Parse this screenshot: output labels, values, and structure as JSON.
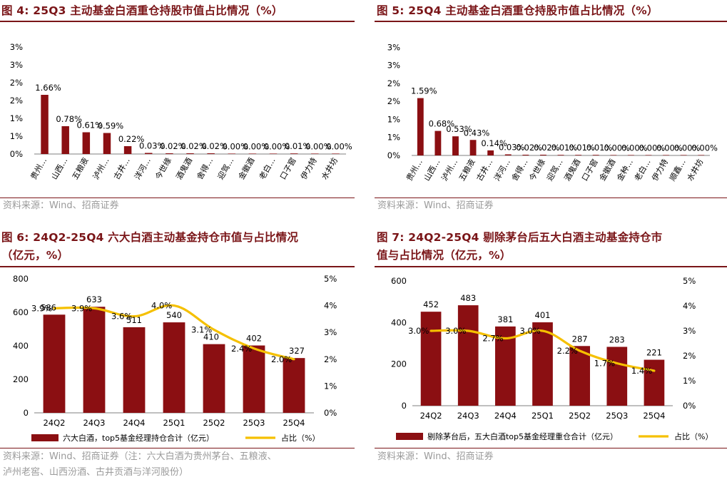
{
  "colors": {
    "bar": "#8b0f12",
    "line": "#f5c000",
    "title": "#7a1518",
    "source": "#9a9a9a",
    "axis": "#7f7f7f"
  },
  "fig4": {
    "title": "图 4:  25Q3 主动基金白酒重仓持股市值占比情况（%）",
    "source": "资料来源：Wind、招商证券"
  },
  "fig5": {
    "title": "图 5:  25Q4 主动基金白酒重仓持股市值占比情况（%）",
    "source": "资料来源：Wind、招商证券"
  },
  "fig6": {
    "title_line1": "图 6:  24Q2-25Q4 六大白酒主动基金持仓市值与占比情况",
    "title_line2": "（亿元，%）",
    "source_line1": "资料来源：Wind、招商证券（注：六大白酒为贵州茅台、五粮液、",
    "source_line2": "泸州老窖、山西汾酒、古井贡酒与洋河股份）"
  },
  "fig7": {
    "title_line1": "图 7:  24Q2-25Q4 剔除茅台后五大白酒主动基金持仓市",
    "title_line2": "值与占比情况（亿元，%）",
    "source": "资料来源：Wind、招商证券"
  },
  "chart_data": [
    {
      "id": "fig4",
      "type": "bar",
      "title": "25Q3 主动基金白酒重仓持股市值占比情况（%）",
      "categories": [
        "贵州…",
        "山西…",
        "五粮液",
        "泸州…",
        "古井…",
        "洋河…",
        "今世缘",
        "酒鬼酒",
        "舍得…",
        "迎驾…",
        "金徽酒",
        "老白…",
        "口子窖",
        "伊力特",
        "水井坊"
      ],
      "show_category": [
        true,
        true,
        true,
        true,
        true,
        true,
        true,
        true,
        true,
        true,
        true,
        true,
        true,
        true,
        true
      ],
      "values": [
        1.66,
        0.78,
        0.61,
        0.59,
        0.22,
        0.03,
        0.02,
        0.02,
        0.02,
        0.0,
        0.0,
        0.0,
        0.01,
        0.0,
        0.0
      ],
      "labels": [
        "1.66%",
        "0.78%",
        "0.61%",
        "0.59%",
        "0.22%",
        "0.03%",
        "0.02%",
        "0.02%",
        "0.02%",
        "0.00%",
        "0.00%",
        "0.00%",
        "0.01%",
        "0.00%",
        "0.00%"
      ],
      "yticks": [
        "3%",
        "3%",
        "2%",
        "2%",
        "1%",
        "1%",
        "0%"
      ],
      "ylim": [
        0,
        3.5
      ]
    },
    {
      "id": "fig5",
      "type": "bar",
      "title": "25Q4 主动基金白酒重仓持股市值占比情况（%）",
      "categories": [
        "贵州…",
        "山西…",
        "泸州…",
        "五粮液",
        "古井…",
        "洋河…",
        "舍得…",
        "今世缘",
        "迎驾…",
        "酒鬼酒",
        "口子窖",
        "金徽酒",
        "金种…",
        "老白…",
        "伊力特",
        "顺鑫…",
        "水井坊"
      ],
      "show_category": [
        true,
        true,
        true,
        true,
        true,
        true,
        true,
        true,
        true,
        true,
        true,
        true,
        true,
        true,
        true,
        true,
        true
      ],
      "values": [
        1.59,
        0.68,
        0.53,
        0.43,
        0.14,
        0.03,
        0.02,
        0.02,
        0.01,
        0.01,
        0.01,
        0.0,
        0.0,
        0.0,
        0.0,
        0.0,
        0.0
      ],
      "labels": [
        "1.59%",
        "0.68%",
        "0.53%",
        "0.43%",
        "0.14%",
        "0.03%",
        "0.02%",
        "0.02%",
        "0.01%",
        "0.01%",
        "0.01%",
        "0.00%",
        "0.00%",
        "0.00%",
        "0.00%",
        "0.00%",
        "0.00%"
      ],
      "yticks": [
        "3%",
        "3%",
        "2%",
        "2%",
        "1%",
        "1%",
        "0%"
      ],
      "ylim": [
        0,
        3.5
      ]
    },
    {
      "id": "fig6",
      "type": "bar+line",
      "title": "24Q2-25Q4 六大白酒主动基金持仓市值与占比情况（亿元，%）",
      "categories": [
        "24Q2",
        "24Q3",
        "24Q4",
        "25Q1",
        "25Q2",
        "25Q3",
        "25Q4"
      ],
      "bar_values": [
        586,
        633,
        511,
        540,
        410,
        402,
        327
      ],
      "bar_labels": [
        "586",
        "633",
        "511",
        "540",
        "410",
        "402",
        "327"
      ],
      "line_values": [
        3.9,
        3.9,
        3.6,
        4.0,
        3.1,
        2.4,
        2.0
      ],
      "line_labels": [
        "3.9%",
        "3.9%",
        "3.6%",
        "4.0%",
        "3.1%",
        "2.4%",
        "2.0%"
      ],
      "ylim_left": [
        0,
        800
      ],
      "yticks_left": [
        "0",
        "200",
        "400",
        "600",
        "800"
      ],
      "ylim_right": [
        0,
        5
      ],
      "yticks_right": [
        "0%",
        "1%",
        "2%",
        "3%",
        "4%",
        "5%"
      ],
      "legend": [
        "六大白酒，top5基金经理持仓合计（亿元）",
        "占比（%）"
      ]
    },
    {
      "id": "fig7",
      "type": "bar+line",
      "title": "24Q2-25Q4 剔除茅台后五大白酒主动基金持仓市值与占比情况（亿元，%）",
      "categories": [
        "24Q2",
        "24Q3",
        "24Q4",
        "25Q1",
        "25Q2",
        "25Q3",
        "25Q4"
      ],
      "bar_values": [
        452,
        483,
        381,
        401,
        287,
        283,
        221
      ],
      "bar_labels": [
        "452",
        "483",
        "381",
        "401",
        "287",
        "283",
        "221"
      ],
      "line_values": [
        3.0,
        3.0,
        2.7,
        3.0,
        2.2,
        1.7,
        1.4
      ],
      "line_labels": [
        "3.0%",
        "3.0%",
        "2.7%",
        "3.0%",
        "2.2%",
        "1.7%",
        "1.4%"
      ],
      "ylim_left": [
        0,
        600
      ],
      "yticks_left": [
        "0",
        "200",
        "400",
        "600"
      ],
      "ylim_right": [
        0,
        5
      ],
      "yticks_right": [
        "0%",
        "1%",
        "2%",
        "3%",
        "4%",
        "5%"
      ],
      "legend": [
        "剔除茅台后，五大白酒top5基金经理重仓合计（亿元）",
        "占比（%）"
      ]
    }
  ]
}
